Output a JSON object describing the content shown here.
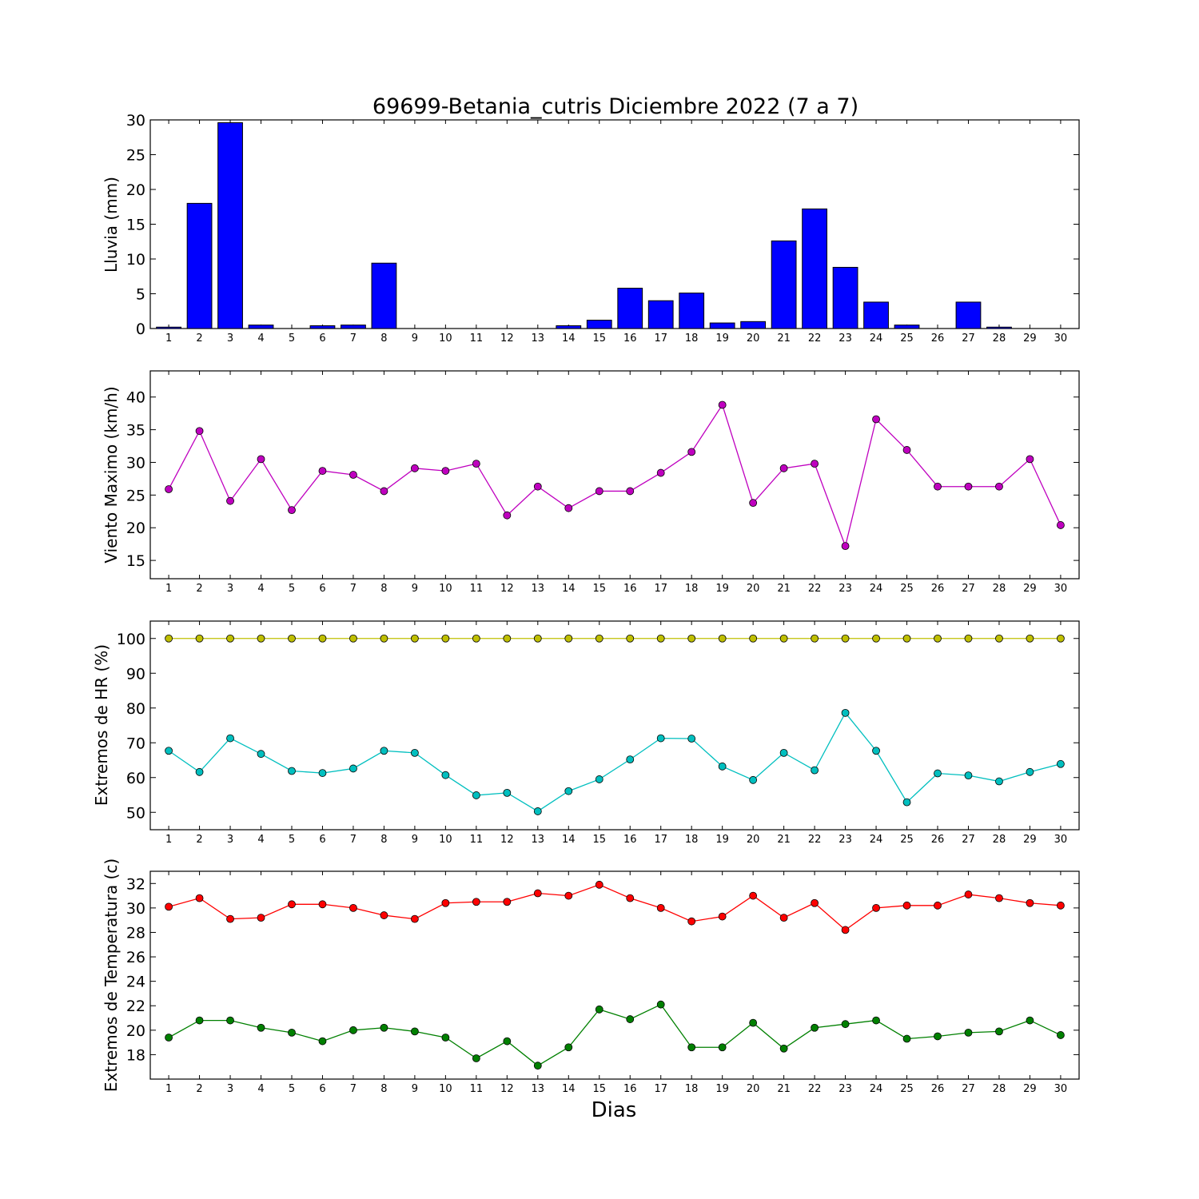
{
  "chart_data": {
    "title": "69699-Betania_cutris Diciembre 2022  (7 a 7)",
    "xlabel": "Dias",
    "days": [
      1,
      2,
      3,
      4,
      5,
      6,
      7,
      8,
      9,
      10,
      11,
      12,
      13,
      14,
      15,
      16,
      17,
      18,
      19,
      20,
      21,
      22,
      23,
      24,
      25,
      26,
      27,
      28,
      29,
      30
    ],
    "panels": [
      {
        "id": "lluvia",
        "type": "bar",
        "ylabel": "Lluvia (mm)",
        "ylim": [
          0,
          30
        ],
        "yticks": [
          0,
          5,
          10,
          15,
          20,
          25,
          30
        ],
        "series": [
          {
            "color": "#0000ff",
            "values": [
              0.2,
              18.0,
              29.6,
              0.5,
              0.0,
              0.4,
              0.5,
              9.4,
              0.0,
              0.0,
              0.0,
              0.0,
              0.0,
              0.4,
              1.2,
              5.8,
              4.0,
              5.1,
              0.8,
              1.0,
              12.6,
              17.2,
              8.8,
              3.8,
              0.5,
              0.0,
              3.8,
              0.2,
              0.0,
              0.0
            ]
          }
        ]
      },
      {
        "id": "viento",
        "type": "line",
        "ylabel": "Viento Maximo (km/h)",
        "ylim": [
          12.2,
          44
        ],
        "yticks": [
          15,
          20,
          25,
          30,
          35,
          40
        ],
        "series": [
          {
            "color": "#bf00bf",
            "values": [
              25.9,
              34.8,
              24.1,
              30.5,
              22.7,
              28.7,
              28.1,
              25.6,
              29.1,
              28.7,
              29.8,
              21.9,
              26.3,
              23.0,
              25.6,
              25.6,
              28.4,
              31.6,
              38.8,
              23.8,
              29.1,
              29.8,
              17.2,
              36.6,
              31.9,
              26.3,
              26.3,
              26.3,
              30.5,
              20.4
            ]
          }
        ]
      },
      {
        "id": "hr",
        "type": "line",
        "ylabel": "Extremos de HR (%)",
        "ylim": [
          45,
          105
        ],
        "yticks": [
          50,
          60,
          70,
          80,
          90,
          100
        ],
        "series": [
          {
            "color": "#bfbf00",
            "values": [
              100,
              100,
              100,
              100,
              100,
              100,
              100,
              100,
              100,
              100,
              100,
              100,
              100,
              100,
              100,
              100,
              100,
              100,
              100,
              100,
              100,
              100,
              100,
              100,
              100,
              100,
              100,
              100,
              100,
              100
            ]
          },
          {
            "color": "#00bfbf",
            "values": [
              67.7,
              61.6,
              71.3,
              66.8,
              61.9,
              61.3,
              62.6,
              67.7,
              67.1,
              60.7,
              54.9,
              55.6,
              50.3,
              56.1,
              59.5,
              65.2,
              71.3,
              71.2,
              63.2,
              59.3,
              67.1,
              62.1,
              78.6,
              67.7,
              52.9,
              61.2,
              60.6,
              58.9,
              61.6,
              63.9
            ]
          }
        ]
      },
      {
        "id": "temp",
        "type": "line",
        "ylabel": "Extremos de Temperatura (c)",
        "ylim": [
          16,
          33
        ],
        "yticks": [
          18,
          20,
          22,
          24,
          26,
          28,
          30,
          32
        ],
        "series": [
          {
            "color": "#ff0000",
            "values": [
              30.1,
              30.8,
              29.1,
              29.2,
              30.3,
              30.3,
              30.0,
              29.4,
              29.1,
              30.4,
              30.5,
              30.5,
              31.2,
              31.0,
              31.9,
              30.8,
              30.0,
              28.9,
              29.3,
              31.0,
              29.2,
              30.4,
              28.2,
              30.0,
              30.2,
              30.2,
              31.1,
              30.8,
              30.4,
              30.2
            ]
          },
          {
            "color": "#008000",
            "values": [
              19.4,
              20.8,
              20.8,
              20.2,
              19.8,
              19.1,
              20.0,
              20.2,
              19.9,
              19.4,
              17.7,
              19.1,
              17.1,
              18.6,
              21.7,
              20.9,
              22.1,
              18.6,
              18.6,
              20.6,
              18.5,
              20.2,
              20.5,
              20.8,
              19.3,
              19.5,
              19.8,
              19.9,
              20.8,
              19.6
            ]
          }
        ]
      }
    ]
  }
}
